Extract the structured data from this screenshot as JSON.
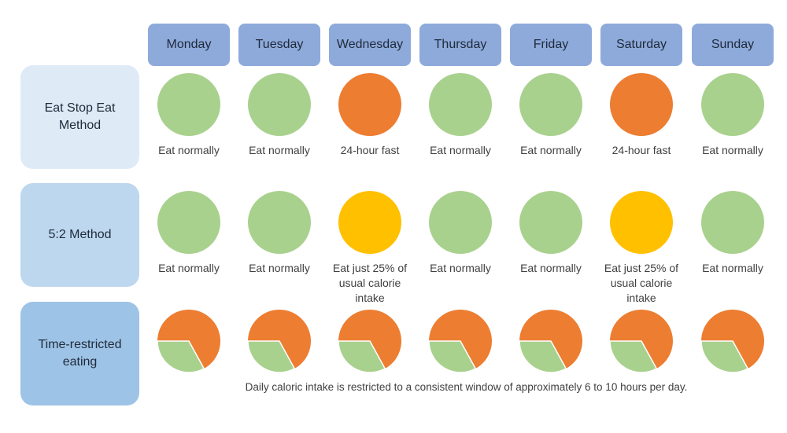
{
  "days": [
    "Monday",
    "Tuesday",
    "Wednesday",
    "Thursday",
    "Friday",
    "Saturday",
    "Sunday"
  ],
  "colors": {
    "eat": "#a9d18e",
    "fast": "#ed7d31",
    "reduced": "#ffc000",
    "header": "#8eaadb"
  },
  "methods": [
    {
      "label": "Eat Stop Eat Method",
      "bg": "#deebf7",
      "cells": [
        {
          "type": "eat",
          "text": "Eat normally"
        },
        {
          "type": "eat",
          "text": "Eat normally"
        },
        {
          "type": "fast",
          "text": "24-hour fast"
        },
        {
          "type": "eat",
          "text": "Eat normally"
        },
        {
          "type": "eat",
          "text": "Eat normally"
        },
        {
          "type": "fast",
          "text": "24-hour fast"
        },
        {
          "type": "eat",
          "text": "Eat normally"
        }
      ]
    },
    {
      "label": "5:2 Method",
      "bg": "#bdd7ee",
      "cells": [
        {
          "type": "eat",
          "text": "Eat normally"
        },
        {
          "type": "eat",
          "text": "Eat normally"
        },
        {
          "type": "reduced",
          "text": "Eat just 25% of usual calorie intake"
        },
        {
          "type": "eat",
          "text": "Eat normally"
        },
        {
          "type": "eat",
          "text": "Eat normally"
        },
        {
          "type": "reduced",
          "text": "Eat just 25% of usual calorie intake"
        },
        {
          "type": "eat",
          "text": "Eat normally"
        }
      ]
    },
    {
      "label": "Time-restricted eating",
      "bg": "#9dc3e6",
      "eating_fraction": 0.33,
      "note": "Daily caloric intake is restricted to a consistent window of approximately 6 to 10 hours per day."
    }
  ]
}
